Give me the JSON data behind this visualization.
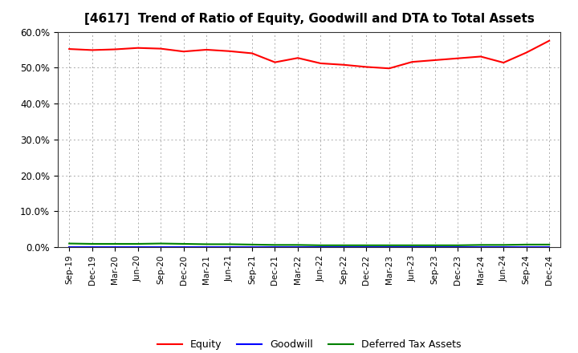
{
  "title": "[4617]  Trend of Ratio of Equity, Goodwill and DTA to Total Assets",
  "x_labels": [
    "Sep-19",
    "Dec-19",
    "Mar-20",
    "Jun-20",
    "Sep-20",
    "Dec-20",
    "Mar-21",
    "Jun-21",
    "Sep-21",
    "Dec-21",
    "Mar-22",
    "Jun-22",
    "Sep-22",
    "Dec-22",
    "Mar-23",
    "Jun-23",
    "Sep-23",
    "Dec-23",
    "Mar-24",
    "Jun-24",
    "Sep-24",
    "Dec-24"
  ],
  "equity": [
    55.2,
    54.9,
    55.1,
    55.5,
    55.3,
    54.5,
    55.0,
    54.6,
    54.0,
    51.5,
    52.7,
    51.2,
    50.8,
    50.2,
    49.8,
    51.6,
    52.1,
    52.6,
    53.1,
    51.4,
    54.2,
    57.5
  ],
  "goodwill": [
    0.0,
    0.0,
    0.0,
    0.0,
    0.0,
    0.0,
    0.0,
    0.0,
    0.0,
    0.0,
    0.0,
    0.0,
    0.0,
    0.0,
    0.0,
    0.0,
    0.0,
    0.0,
    0.0,
    0.0,
    0.0,
    0.0
  ],
  "dta": [
    1.0,
    0.9,
    0.9,
    0.9,
    1.0,
    0.9,
    0.8,
    0.8,
    0.7,
    0.6,
    0.6,
    0.5,
    0.5,
    0.5,
    0.5,
    0.5,
    0.5,
    0.5,
    0.6,
    0.6,
    0.7,
    0.7
  ],
  "equity_color": "#ff0000",
  "goodwill_color": "#0000ff",
  "dta_color": "#008000",
  "ylim": [
    0,
    60
  ],
  "yticks": [
    0,
    10,
    20,
    30,
    40,
    50,
    60
  ],
  "ytick_labels": [
    "0.0%",
    "10.0%",
    "20.0%",
    "30.0%",
    "40.0%",
    "50.0%",
    "60.0%"
  ],
  "grid_color": "#aaaaaa",
  "background_color": "#ffffff",
  "title_fontsize": 11,
  "legend_labels": [
    "Equity",
    "Goodwill",
    "Deferred Tax Assets"
  ]
}
